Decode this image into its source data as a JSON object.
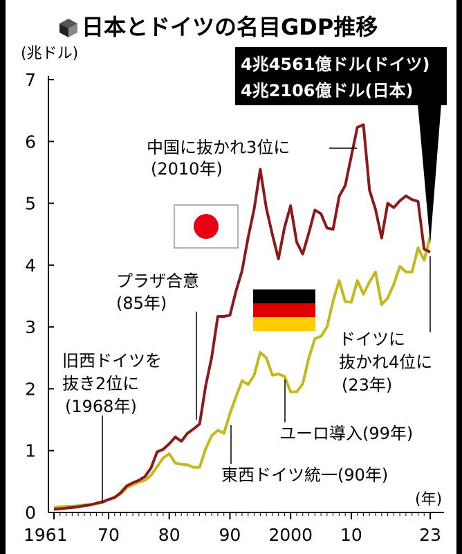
{
  "title": "日本とドイツの名目GDP推移",
  "icon": "cube-icon",
  "flags": {
    "japan": "japan-flag-icon",
    "germany": "germany-flag-icon"
  },
  "colors": {
    "japan": "#8b1a1a",
    "germany": "#c4b81a",
    "callout_bg": "#000000"
  },
  "callout": {
    "line1": "4兆4561億ドル(ドイツ)",
    "line2": "4兆2106億ドル(日本)"
  },
  "annotations": {
    "china": {
      "line1": "中国に抜かれ3位に",
      "line2": "(2010年)"
    },
    "plaza": {
      "line1": "プラザ合意",
      "line2": "(85年)"
    },
    "west": {
      "line1": "旧西ドイツを",
      "line2": "抜き2位に",
      "line3": "(1968年)"
    },
    "germany": {
      "line1": "ドイツに",
      "line2": "抜かれ4位に",
      "line3": "(23年)"
    },
    "euro": {
      "line1": "ユーロ導入(99年)"
    },
    "unification": {
      "line1": "東西ドイツ統一(90年)"
    }
  },
  "chart_data": {
    "type": "line",
    "ylabel": "(兆ドル)",
    "xlabel": "(年)",
    "xlim": [
      1961,
      2023
    ],
    "ylim": [
      0,
      7
    ],
    "x_ticks": [
      1961,
      1970,
      1980,
      1990,
      2000,
      2010,
      2023
    ],
    "x_tick_labels": [
      "1961",
      "70",
      "80",
      "90",
      "2000",
      "10",
      "23"
    ],
    "y_ticks": [
      0,
      1,
      2,
      3,
      4,
      5,
      6,
      7
    ],
    "y_tick_labels": [
      "0",
      "1",
      "2",
      "3",
      "4",
      "5",
      "6",
      "7"
    ],
    "series": [
      {
        "key": "japan",
        "x": [
          1961,
          1962,
          1963,
          1964,
          1965,
          1966,
          1967,
          1968,
          1969,
          1970,
          1971,
          1972,
          1973,
          1974,
          1975,
          1976,
          1977,
          1978,
          1979,
          1980,
          1981,
          1982,
          1983,
          1984,
          1985,
          1986,
          1987,
          1988,
          1989,
          1990,
          1991,
          1992,
          1993,
          1994,
          1995,
          1996,
          1997,
          1998,
          1999,
          2000,
          2001,
          2002,
          2003,
          2004,
          2005,
          2006,
          2007,
          2008,
          2009,
          2010,
          2011,
          2012,
          2013,
          2014,
          2015,
          2016,
          2017,
          2018,
          2019,
          2020,
          2021,
          2022,
          2023
        ],
        "values": [
          0.05,
          0.06,
          0.07,
          0.08,
          0.09,
          0.11,
          0.12,
          0.15,
          0.17,
          0.21,
          0.24,
          0.32,
          0.43,
          0.48,
          0.52,
          0.58,
          0.72,
          0.98,
          1.02,
          1.11,
          1.22,
          1.15,
          1.28,
          1.35,
          1.43,
          2.05,
          2.51,
          3.17,
          3.17,
          3.19,
          3.58,
          3.91,
          4.45,
          4.91,
          5.55,
          4.92,
          4.49,
          4.1,
          4.61,
          4.96,
          4.37,
          4.18,
          4.52,
          4.89,
          4.83,
          4.6,
          4.58,
          5.11,
          5.29,
          5.76,
          6.23,
          6.27,
          5.21,
          4.9,
          4.44,
          5.0,
          4.93,
          5.04,
          5.12,
          5.06,
          5.03,
          4.26,
          4.21
        ]
      },
      {
        "key": "germany",
        "x": [
          1961,
          1962,
          1963,
          1964,
          1965,
          1966,
          1967,
          1968,
          1969,
          1970,
          1971,
          1972,
          1973,
          1974,
          1975,
          1976,
          1977,
          1978,
          1979,
          1980,
          1981,
          1982,
          1983,
          1984,
          1985,
          1986,
          1987,
          1988,
          1989,
          1990,
          1991,
          1992,
          1993,
          1994,
          1995,
          1996,
          1997,
          1998,
          1999,
          2000,
          2001,
          2002,
          2003,
          2004,
          2005,
          2006,
          2007,
          2008,
          2009,
          2010,
          2011,
          2012,
          2013,
          2014,
          2015,
          2016,
          2017,
          2018,
          2019,
          2020,
          2021,
          2022,
          2023
        ],
        "values": [
          0.08,
          0.09,
          0.1,
          0.1,
          0.11,
          0.12,
          0.13,
          0.14,
          0.16,
          0.21,
          0.25,
          0.3,
          0.4,
          0.45,
          0.49,
          0.52,
          0.6,
          0.74,
          0.88,
          0.95,
          0.8,
          0.78,
          0.77,
          0.73,
          0.73,
          1.03,
          1.24,
          1.33,
          1.28,
          1.6,
          1.87,
          2.13,
          2.07,
          2.22,
          2.59,
          2.5,
          2.22,
          2.24,
          2.2,
          1.95,
          1.95,
          2.08,
          2.5,
          2.81,
          2.85,
          3.0,
          3.42,
          3.75,
          3.41,
          3.4,
          3.75,
          3.53,
          3.73,
          3.89,
          3.36,
          3.47,
          3.69,
          3.98,
          3.89,
          3.89,
          4.28,
          4.08,
          4.46
        ]
      }
    ]
  }
}
